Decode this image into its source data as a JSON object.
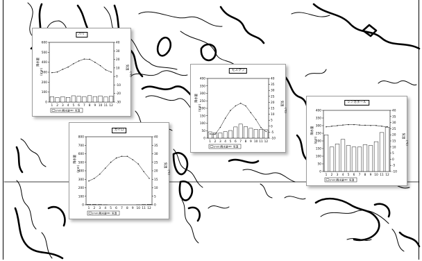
{
  "figure": {
    "map_name": "world-map-background"
  },
  "charts": [
    {
      "id": "paris",
      "title": "パリ",
      "chart_data": {
        "type": "bar",
        "title": "パリ",
        "categories": [
          "1",
          "2",
          "3",
          "4",
          "5",
          "6",
          "7",
          "8",
          "9",
          "10",
          "11",
          "12"
        ],
        "series": [
          {
            "name": "(mm)降水量",
            "type": "bar",
            "axis": "left",
            "values": [
              54,
              46,
              54,
              47,
              63,
              58,
              55,
              64,
              55,
              62,
              51,
              59
            ]
          },
          {
            "name": "気温",
            "type": "line",
            "axis": "right",
            "values": [
              4.5,
              5.2,
              8.4,
              11.0,
              14.9,
              18.2,
              20.4,
              20.2,
              16.6,
              12.6,
              7.7,
              5.1
            ]
          }
        ],
        "left_axis": {
          "label": "降水量",
          "unit": "(mm)",
          "ticks": [
            "600",
            "500",
            "400",
            "300",
            "200",
            "100",
            "0"
          ],
          "ylim": [
            0,
            600
          ]
        },
        "right_axis": {
          "label": "気温",
          "unit": "(℃)",
          "ticks": [
            "40",
            "30",
            "20",
            "10",
            "0",
            "-10",
            "-20",
            "-30"
          ],
          "ylim": [
            -30,
            40
          ]
        },
        "legend": [
          "(mm)降水量",
          "気温"
        ],
        "legend_placement": "bottom-left"
      }
    },
    {
      "id": "moscow",
      "title": "モスクワ",
      "chart_data": {
        "type": "bar",
        "title": "モスクワ",
        "categories": [
          "1",
          "2",
          "3",
          "4",
          "5",
          "6",
          "7",
          "8",
          "9",
          "10",
          "11",
          "12"
        ],
        "series": [
          {
            "name": "(mm)降水量",
            "type": "bar",
            "axis": "left",
            "values": [
              42,
              36,
              34,
              44,
              51,
              75,
              94,
              77,
              66,
              59,
              58,
              56
            ]
          },
          {
            "name": "気温",
            "type": "line",
            "axis": "right",
            "values": [
              -6.5,
              -6.7,
              -1.0,
              6.7,
              13.2,
              17.0,
              19.2,
              17.0,
              11.3,
              5.6,
              -1.2,
              -4.5
            ]
          }
        ],
        "left_axis": {
          "label": "降水量",
          "unit": "(mm)",
          "ticks": [
            "400",
            "350",
            "300",
            "250",
            "200",
            "150",
            "100",
            "50",
            "0"
          ],
          "ylim": [
            0,
            400
          ]
        },
        "right_axis": {
          "label": "気温",
          "unit": "(℃)",
          "ticks": [
            "40",
            "35",
            "30",
            "25",
            "20",
            "15",
            "10",
            "5",
            "0",
            "-5",
            "-10"
          ],
          "ylim": [
            -10,
            40
          ]
        },
        "legend": [
          "(mm)降水量",
          "気温"
        ],
        "legend_placement": "bottom-left"
      }
    },
    {
      "id": "cairo",
      "title": "カイロ",
      "chart_data": {
        "type": "bar",
        "title": "カイロ",
        "categories": [
          "1",
          "2",
          "3",
          "4",
          "5",
          "6",
          "7",
          "8",
          "9",
          "10",
          "11",
          "12"
        ],
        "series": [
          {
            "name": "(mm)降水量",
            "type": "bar",
            "axis": "left",
            "values": [
              5,
              4,
              3,
              1,
              0,
              0,
              0,
              0,
              0,
              1,
              3,
              6
            ]
          },
          {
            "name": "気温",
            "type": "line",
            "axis": "right",
            "values": [
              14,
              15.5,
              18,
              21.5,
              25,
              27.5,
              28.5,
              28.5,
              26.5,
              24,
              19.5,
              15.5
            ]
          }
        ],
        "left_axis": {
          "label": "降水量",
          "unit": "(mm)",
          "ticks": [
            "800",
            "700",
            "600",
            "500",
            "400",
            "300",
            "200",
            "100",
            "0"
          ],
          "ylim": [
            0,
            800
          ]
        },
        "right_axis": {
          "label": "気温",
          "unit": "(℃)",
          "ticks": [
            "40",
            "35",
            "30",
            "25",
            "20",
            "15",
            "10",
            "5",
            "0"
          ],
          "ylim": [
            0,
            40
          ]
        },
        "legend": [
          "(mm)降水量",
          "気温"
        ],
        "legend_placement": "bottom-left"
      }
    },
    {
      "id": "singapore",
      "title": "シンガポール",
      "chart_data": {
        "type": "bar",
        "title": "シンガポール",
        "categories": [
          "1",
          "2",
          "3",
          "4",
          "5",
          "6",
          "7",
          "8",
          "9",
          "10",
          "11",
          "12"
        ],
        "series": [
          {
            "name": "(mm)降水量",
            "type": "bar",
            "axis": "left",
            "values": [
              240,
              160,
              180,
              210,
              170,
              160,
              160,
              175,
              170,
              195,
              255,
              290
            ]
          },
          {
            "name": "気温",
            "type": "line",
            "axis": "right",
            "values": [
              26.5,
              27.0,
              27.5,
              28.0,
              28.3,
              28.3,
              28.0,
              27.8,
              27.6,
              27.6,
              27.0,
              26.6
            ]
          }
        ],
        "left_axis": {
          "label": "降水量",
          "unit": "(mm)",
          "ticks": [
            "400",
            "350",
            "300",
            "250",
            "200",
            "150",
            "100",
            "50",
            "0"
          ],
          "ylim": [
            0,
            400
          ]
        },
        "right_axis": {
          "label": "気温",
          "unit": "(℃)",
          "ticks": [
            "40",
            "35",
            "30",
            "25",
            "20",
            "15",
            "10",
            "5",
            "0",
            "-5",
            "-10"
          ],
          "ylim": [
            -10,
            40
          ]
        },
        "legend": [
          "(mm)降水量",
          "気温"
        ],
        "legend_placement": "bottom-left"
      }
    }
  ]
}
